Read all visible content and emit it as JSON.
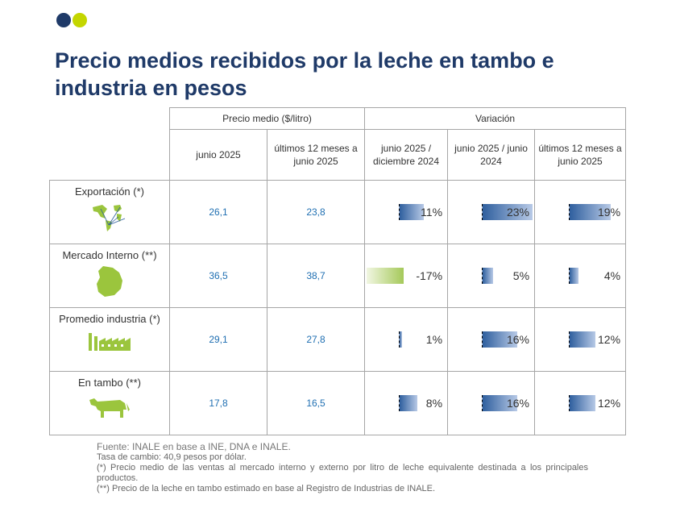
{
  "title": "Precio medios recibidos por la leche en tambo e industria en pesos",
  "headers": {
    "group_price": "Precio medio ($/litro)",
    "group_variation": "Variación",
    "cols": [
      "junio 2025",
      "últimos 12 meses a junio 2025",
      "junio 2025 / diciembre 2024",
      "junio 2025 / junio 2024",
      "últimos 12 meses a junio 2025"
    ]
  },
  "rows": [
    {
      "label": "Exportación (*)",
      "icon": "world-map-icon",
      "price_jun": "26,1",
      "price_12m": "23,8",
      "var_dic": 11,
      "var_dic_label": "11%",
      "var_jun": 23,
      "var_jun_label": "23%",
      "var_12m": 19,
      "var_12m_label": "19%"
    },
    {
      "label": "Mercado Interno (**)",
      "icon": "uruguay-map-icon",
      "price_jun": "36,5",
      "price_12m": "38,7",
      "var_dic": -17,
      "var_dic_label": "-17%",
      "var_jun": 5,
      "var_jun_label": "5%",
      "var_12m": 4,
      "var_12m_label": "4%"
    },
    {
      "label": "Promedio industria (*)",
      "icon": "factory-icon",
      "price_jun": "29,1",
      "price_12m": "27,8",
      "var_dic": 1,
      "var_dic_label": "1%",
      "var_jun": 16,
      "var_jun_label": "16%",
      "var_12m": 12,
      "var_12m_label": "12%"
    },
    {
      "label": "En tambo (**)",
      "icon": "cow-icon",
      "price_jun": "17,8",
      "price_12m": "16,5",
      "var_dic": 8,
      "var_dic_label": "8%",
      "var_jun": 16,
      "var_jun_label": "16%",
      "var_12m": 12,
      "var_12m_label": "12%"
    }
  ],
  "notes": {
    "source": "Fuente: INALE en base a INE, DNA e INALE.",
    "exchange": "Tasa de cambio: 40,9 pesos por dólar.",
    "note1": "(*) Precio medio de las ventas al mercado interno y externo por litro de leche equivalente destinada a los principales productos.",
    "note2": "(**) Precio de la leche en tambo estimado en base al Registro de Industrias de INALE."
  },
  "colors": {
    "navy": "#1f3a68",
    "lime": "#c4d600",
    "number_blue": "#1f6fb2",
    "icon_green": "#9bc53d"
  }
}
